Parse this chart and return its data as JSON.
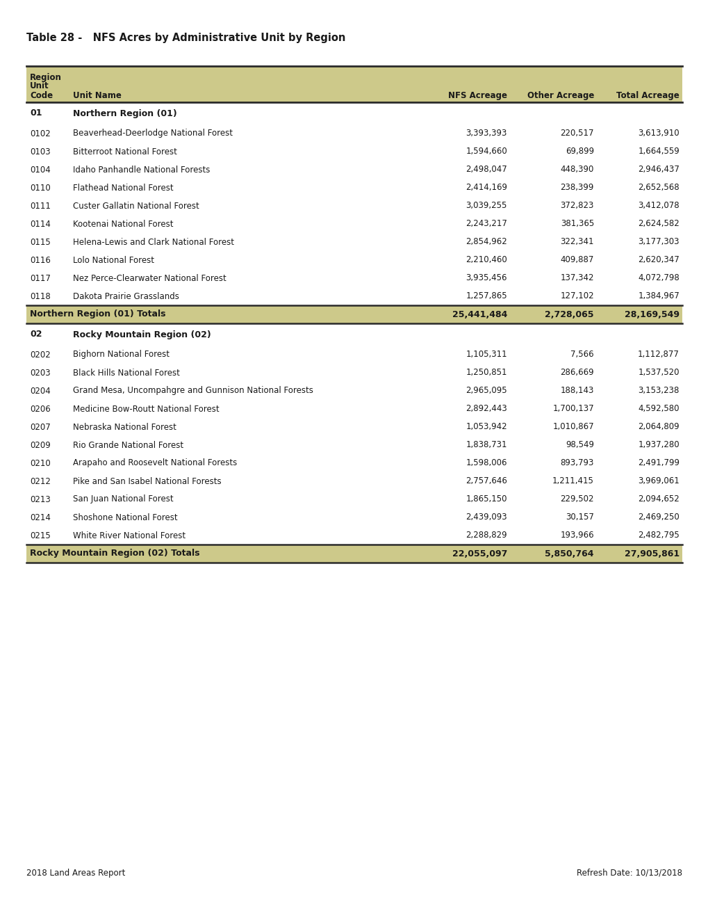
{
  "title": "Table 28 -   NFS Acres by Administrative Unit by Region",
  "footer_left": "2018 Land Areas Report",
  "footer_right": "Refresh Date: 10/13/2018",
  "header_bg": "#cdc98a",
  "totals_bg": "#cdc98a",
  "white_bg": "#ffffff",
  "rows": [
    {
      "code": "01",
      "name": "Northern Region (01)",
      "nfs": "",
      "other": "",
      "total": "",
      "type": "region_header"
    },
    {
      "code": "0102",
      "name": "Beaverhead-Deerlodge National Forest",
      "nfs": "3,393,393",
      "other": "220,517",
      "total": "3,613,910",
      "type": "data"
    },
    {
      "code": "0103",
      "name": "Bitterroot National Forest",
      "nfs": "1,594,660",
      "other": "69,899",
      "total": "1,664,559",
      "type": "data"
    },
    {
      "code": "0104",
      "name": "Idaho Panhandle National Forests",
      "nfs": "2,498,047",
      "other": "448,390",
      "total": "2,946,437",
      "type": "data"
    },
    {
      "code": "0110",
      "name": "Flathead National Forest",
      "nfs": "2,414,169",
      "other": "238,399",
      "total": "2,652,568",
      "type": "data"
    },
    {
      "code": "0111",
      "name": "Custer Gallatin National Forest",
      "nfs": "3,039,255",
      "other": "372,823",
      "total": "3,412,078",
      "type": "data"
    },
    {
      "code": "0114",
      "name": "Kootenai National Forest",
      "nfs": "2,243,217",
      "other": "381,365",
      "total": "2,624,582",
      "type": "data"
    },
    {
      "code": "0115",
      "name": "Helena-Lewis and Clark National Forest",
      "nfs": "2,854,962",
      "other": "322,341",
      "total": "3,177,303",
      "type": "data"
    },
    {
      "code": "0116",
      "name": "Lolo National Forest",
      "nfs": "2,210,460",
      "other": "409,887",
      "total": "2,620,347",
      "type": "data"
    },
    {
      "code": "0117",
      "name": "Nez Perce-Clearwater National Forest",
      "nfs": "3,935,456",
      "other": "137,342",
      "total": "4,072,798",
      "type": "data"
    },
    {
      "code": "0118",
      "name": "Dakota Prairie Grasslands",
      "nfs": "1,257,865",
      "other": "127,102",
      "total": "1,384,967",
      "type": "data"
    },
    {
      "code": "",
      "name": "Northern Region (01) Totals",
      "nfs": "25,441,484",
      "other": "2,728,065",
      "total": "28,169,549",
      "type": "total"
    },
    {
      "code": "02",
      "name": "Rocky Mountain Region (02)",
      "nfs": "",
      "other": "",
      "total": "",
      "type": "region_header"
    },
    {
      "code": "0202",
      "name": "Bighorn National Forest",
      "nfs": "1,105,311",
      "other": "7,566",
      "total": "1,112,877",
      "type": "data"
    },
    {
      "code": "0203",
      "name": "Black Hills National Forest",
      "nfs": "1,250,851",
      "other": "286,669",
      "total": "1,537,520",
      "type": "data"
    },
    {
      "code": "0204",
      "name": "Grand Mesa, Uncompahgre and Gunnison National Forests",
      "nfs": "2,965,095",
      "other": "188,143",
      "total": "3,153,238",
      "type": "data"
    },
    {
      "code": "0206",
      "name": "Medicine Bow-Routt National Forest",
      "nfs": "2,892,443",
      "other": "1,700,137",
      "total": "4,592,580",
      "type": "data"
    },
    {
      "code": "0207",
      "name": "Nebraska National Forest",
      "nfs": "1,053,942",
      "other": "1,010,867",
      "total": "2,064,809",
      "type": "data"
    },
    {
      "code": "0209",
      "name": "Rio Grande National Forest",
      "nfs": "1,838,731",
      "other": "98,549",
      "total": "1,937,280",
      "type": "data"
    },
    {
      "code": "0210",
      "name": "Arapaho and Roosevelt National Forests",
      "nfs": "1,598,006",
      "other": "893,793",
      "total": "2,491,799",
      "type": "data"
    },
    {
      "code": "0212",
      "name": "Pike and San Isabel National Forests",
      "nfs": "2,757,646",
      "other": "1,211,415",
      "total": "3,969,061",
      "type": "data"
    },
    {
      "code": "0213",
      "name": "San Juan National Forest",
      "nfs": "1,865,150",
      "other": "229,502",
      "total": "2,094,652",
      "type": "data"
    },
    {
      "code": "0214",
      "name": "Shoshone National Forest",
      "nfs": "2,439,093",
      "other": "30,157",
      "total": "2,469,250",
      "type": "data"
    },
    {
      "code": "0215",
      "name": "White River National Forest",
      "nfs": "2,288,829",
      "other": "193,966",
      "total": "2,482,795",
      "type": "data"
    },
    {
      "code": "",
      "name": "Rocky Mountain Region (02) Totals",
      "nfs": "22,055,097",
      "other": "5,850,764",
      "total": "27,905,861",
      "type": "total"
    }
  ]
}
